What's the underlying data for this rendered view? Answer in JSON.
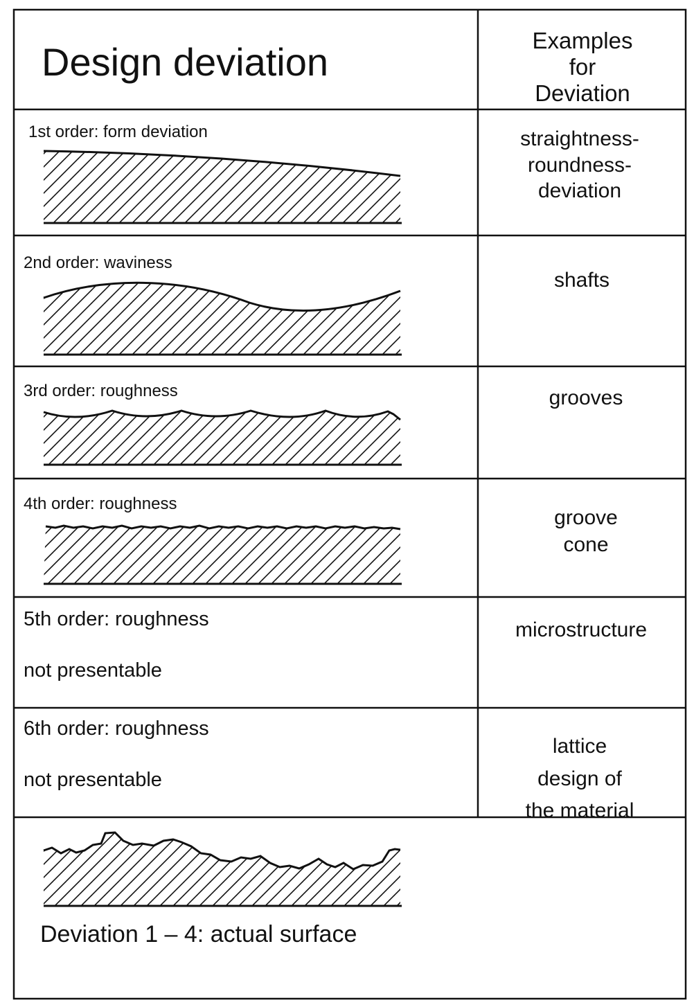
{
  "header": {
    "title": "Design deviation",
    "examples_title": "Examples for\nDeviation"
  },
  "rows": [
    {
      "label": "1st order: form deviation",
      "example": "straightness-\nroundness-\ndeviation",
      "profile": "form"
    },
    {
      "label": "2nd order: waviness",
      "example": "shafts",
      "profile": "waviness"
    },
    {
      "label": "3rd order: roughness",
      "example": "grooves",
      "profile": "grooves"
    },
    {
      "label": "4th order: roughness",
      "example": "groove\ncone",
      "profile": "fine"
    },
    {
      "label": "5th order: roughness",
      "note": "not presentable",
      "example": "microstructure"
    },
    {
      "label": "6th order: roughness",
      "note": "not presentable",
      "example": "lattice design of\nthe material"
    }
  ],
  "footer": {
    "caption": "Deviation 1 – 4: actual surface",
    "profile": "actual"
  }
}
